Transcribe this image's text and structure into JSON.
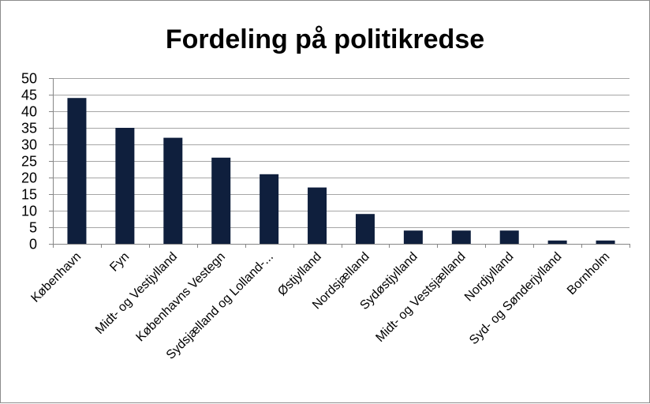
{
  "chart_data": {
    "type": "bar",
    "title": "Fordeling på politikredse",
    "xlabel": "",
    "ylabel": "",
    "categories": [
      "København",
      "Fyn",
      "Midt- og Vestjylland",
      "Københavns Vestegn",
      "Sydsjælland og Lolland-...",
      "Østjylland",
      "Nordsjælland",
      "Sydøstjylland",
      "Midt- og Vestsjælland",
      "Nordjylland",
      "Syd- og Sønderjylland",
      "Bornholm"
    ],
    "values": [
      44,
      35,
      32,
      26,
      21,
      17,
      9,
      4,
      4,
      4,
      1,
      1
    ],
    "ylim": [
      0,
      50
    ],
    "yticks": [
      0,
      5,
      10,
      15,
      20,
      25,
      30,
      35,
      40,
      45,
      50
    ],
    "grid": true,
    "legend": "none",
    "bar_color": "#0f1f3d"
  }
}
